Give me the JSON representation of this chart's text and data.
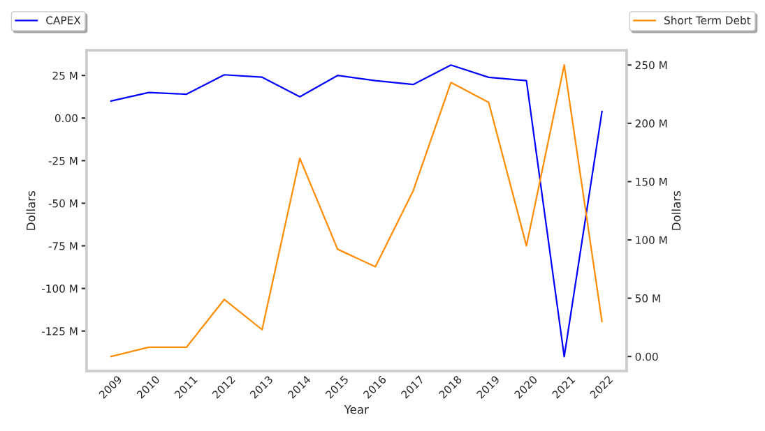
{
  "chart_data": {
    "type": "line",
    "xlabel": "Year",
    "ylabel": "Dollars",
    "y2label": "Dollars",
    "categories": [
      "2009",
      "2010",
      "2011",
      "2012",
      "2013",
      "2014",
      "2015",
      "2016",
      "2017",
      "2018",
      "2019",
      "2020",
      "2021",
      "2022"
    ],
    "series": [
      {
        "name": "CAPEX",
        "color": "#0000ff",
        "values": [
          10,
          15,
          14,
          25.4,
          24,
          12.5,
          25,
          22,
          19.7,
          31.1,
          23.9,
          22,
          -140,
          3.8
        ]
      },
      {
        "name": "Short Term Debt",
        "color": "#ff8c00",
        "axis": "y2",
        "values": [
          0,
          8,
          8,
          49,
          23,
          170,
          92,
          77,
          142,
          235,
          218,
          95,
          250,
          30
        ]
      }
    ],
    "ylim": [
      -148.5,
      39.7
    ],
    "yticks": [
      {
        "value": -125,
        "label": "-125 M"
      },
      {
        "value": -100,
        "label": "-100 M"
      },
      {
        "value": -75,
        "label": "-75 M"
      },
      {
        "value": -50,
        "label": "-50 M"
      },
      {
        "value": -25,
        "label": "-25 M"
      },
      {
        "value": 0,
        "label": "0.00"
      },
      {
        "value": 25,
        "label": "25 M"
      }
    ],
    "y2lim": [
      -12.5,
      262.5
    ],
    "y2ticks": [
      {
        "value": 0,
        "label": "0.00"
      },
      {
        "value": 50,
        "label": "50 M"
      },
      {
        "value": 100,
        "label": "100 M"
      },
      {
        "value": 150,
        "label": "150 M"
      },
      {
        "value": 200,
        "label": "200 M"
      },
      {
        "value": 250,
        "label": "250 M"
      }
    ],
    "legend": "top",
    "grid": false
  }
}
